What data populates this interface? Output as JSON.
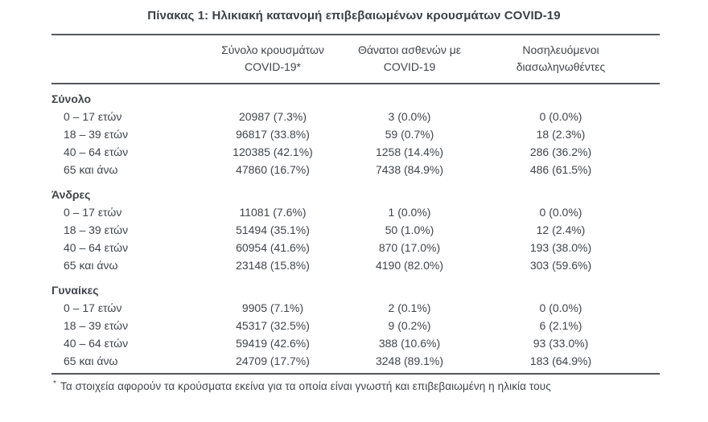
{
  "page": {
    "title": "Πίνακας 1: Ηλικιακή κατανομή επιβεβαιωμένων κρουσμάτων COVID-19"
  },
  "colors": {
    "text": "#40454b",
    "rule": "#54575b",
    "background": "#ffffff"
  },
  "table": {
    "col_headers": [
      {
        "line1": "Σύνολο κρουσμάτων",
        "line2": "COVID-19*"
      },
      {
        "line1": "Θάνατοι ασθενών με",
        "line2": "COVID-19"
      },
      {
        "line1": "Νοσηλευόμενοι",
        "line2": "διασωληνωθέντες"
      }
    ],
    "sections": [
      {
        "label": "Σύνολο",
        "rows": [
          {
            "age": "0 – 17 ετών",
            "cases": "20987 (7.3%)",
            "deaths": "3 (0.0%)",
            "intubated": "0 (0.0%)"
          },
          {
            "age": "18 – 39 ετών",
            "cases": "96817 (33.8%)",
            "deaths": "59 (0.7%)",
            "intubated": "18 (2.3%)"
          },
          {
            "age": "40 – 64 ετών",
            "cases": "120385 (42.1%)",
            "deaths": "1258 (14.4%)",
            "intubated": "286 (36.2%)"
          },
          {
            "age": "65 και άνω",
            "cases": "47860 (16.7%)",
            "deaths": "7438 (84.9%)",
            "intubated": "486 (61.5%)"
          }
        ]
      },
      {
        "label": "Άνδρες",
        "rows": [
          {
            "age": "0 – 17 ετών",
            "cases": "11081 (7.6%)",
            "deaths": "1 (0.0%)",
            "intubated": "0 (0.0%)"
          },
          {
            "age": "18 – 39 ετών",
            "cases": "51494 (35.1%)",
            "deaths": "50 (1.0%)",
            "intubated": "12 (2.4%)"
          },
          {
            "age": "40 – 64 ετών",
            "cases": "60954 (41.6%)",
            "deaths": "870 (17.0%)",
            "intubated": "193 (38.0%)"
          },
          {
            "age": "65 και άνω",
            "cases": "23148 (15.8%)",
            "deaths": "4190 (82.0%)",
            "intubated": "303 (59.6%)"
          }
        ]
      },
      {
        "label": "Γυναίκες",
        "rows": [
          {
            "age": "0 – 17 ετών",
            "cases": "9905 (7.1%)",
            "deaths": "2 (0.1%)",
            "intubated": "0 (0.0%)"
          },
          {
            "age": "18 – 39 ετών",
            "cases": "45317 (32.5%)",
            "deaths": "9 (0.2%)",
            "intubated": "6 (2.1%)"
          },
          {
            "age": "40 – 64 ετών",
            "cases": "59419 (42.6%)",
            "deaths": "388 (10.6%)",
            "intubated": "93 (33.0%)"
          },
          {
            "age": "65 και άνω",
            "cases": "24709 (17.7%)",
            "deaths": "3248 (89.1%)",
            "intubated": "183 (64.9%)"
          }
        ]
      }
    ],
    "footnote_marker": "*",
    "footnote_text": "Τα στοιχεία αφορούν τα κρούσματα εκείνα για τα οποία είναι γνωστή και επιβεβαιωμένη η ηλικία τους"
  }
}
